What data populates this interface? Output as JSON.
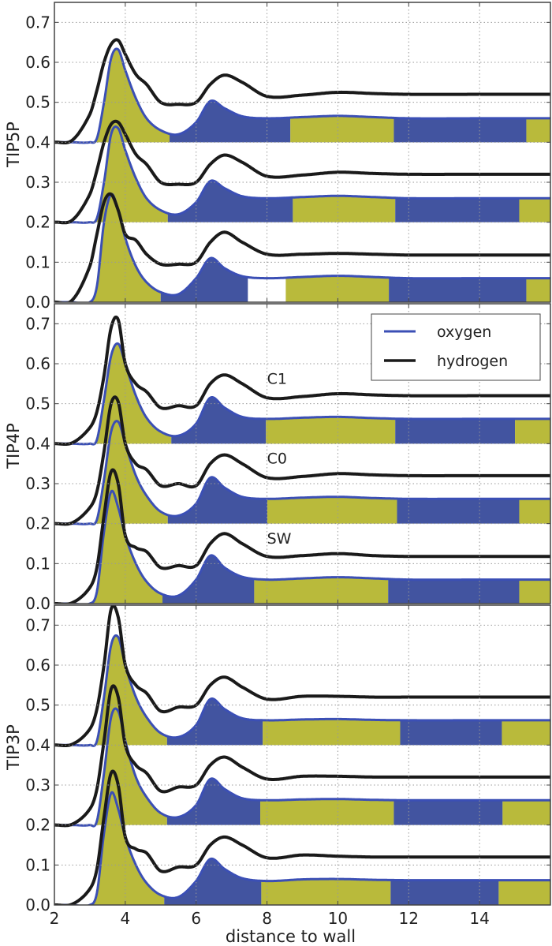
{
  "chart_data": [
    {
      "type": "area",
      "ylabel": "TIP5P",
      "xlabel": "",
      "xlim": [
        2,
        16
      ],
      "ylim": [
        0,
        0.75
      ],
      "grid": true,
      "x": [
        2,
        2.5,
        3.0,
        3.2,
        3.4,
        3.6,
        3.8,
        4.0,
        4.3,
        4.6,
        5.0,
        5.5,
        6.0,
        6.4,
        6.8,
        7.3,
        8,
        9,
        10,
        11,
        12,
        14,
        16
      ],
      "traces": [
        {
          "offset": 0.4,
          "oxygen": [
            0.4,
            0.4,
            0.4,
            0.41,
            0.5,
            0.61,
            0.632,
            0.58,
            0.51,
            0.46,
            0.43,
            0.42,
            0.45,
            0.503,
            0.485,
            0.465,
            0.46,
            0.463,
            0.466,
            0.463,
            0.46,
            0.46,
            0.46
          ],
          "hydrogen": [
            0.4,
            0.405,
            0.47,
            0.53,
            0.6,
            0.645,
            0.655,
            0.62,
            0.57,
            0.545,
            0.5,
            0.495,
            0.5,
            0.545,
            0.568,
            0.55,
            0.515,
            0.518,
            0.525,
            0.522,
            0.52,
            0.52,
            0.52
          ],
          "fill_segments": [
            {
              "from": 3.0,
              "to": 5.25,
              "color": "yellow"
            },
            {
              "from": 5.25,
              "to": 8.66,
              "color": "blue"
            },
            {
              "from": 8.66,
              "to": 11.58,
              "color": "yellow"
            },
            {
              "from": 11.58,
              "to": 15.32,
              "color": "blue"
            },
            {
              "from": 15.32,
              "to": 16,
              "color": "yellow"
            }
          ]
        },
        {
          "offset": 0.2,
          "oxygen": [
            0.2,
            0.2,
            0.2,
            0.21,
            0.3,
            0.42,
            0.435,
            0.38,
            0.31,
            0.26,
            0.23,
            0.22,
            0.25,
            0.303,
            0.285,
            0.265,
            0.26,
            0.263,
            0.266,
            0.263,
            0.26,
            0.26,
            0.26
          ],
          "hydrogen": [
            0.2,
            0.205,
            0.27,
            0.33,
            0.4,
            0.445,
            0.45,
            0.42,
            0.37,
            0.345,
            0.3,
            0.295,
            0.3,
            0.345,
            0.368,
            0.35,
            0.315,
            0.318,
            0.325,
            0.322,
            0.32,
            0.32,
            0.32
          ],
          "fill_segments": [
            {
              "from": 3.0,
              "to": 5.2,
              "color": "yellow"
            },
            {
              "from": 5.2,
              "to": 8.73,
              "color": "blue"
            },
            {
              "from": 8.73,
              "to": 11.62,
              "color": "yellow"
            },
            {
              "from": 11.62,
              "to": 15.12,
              "color": "blue"
            },
            {
              "from": 15.12,
              "to": 16,
              "color": "yellow"
            }
          ]
        },
        {
          "offset": 0.0,
          "oxygen": [
            0,
            0,
            0,
            0.04,
            0.2,
            0.27,
            0.23,
            0.16,
            0.09,
            0.05,
            0.025,
            0.02,
            0.06,
            0.11,
            0.085,
            0.065,
            0.06,
            0.063,
            0.066,
            0.063,
            0.06,
            0.06,
            0.06
          ],
          "hydrogen": [
            0,
            0.005,
            0.09,
            0.17,
            0.25,
            0.27,
            0.23,
            0.17,
            0.155,
            0.12,
            0.095,
            0.095,
            0.1,
            0.15,
            0.175,
            0.15,
            0.12,
            0.12,
            0.122,
            0.12,
            0.118,
            0.118,
            0.118
          ],
          "fill_segments": [
            {
              "from": 3.0,
              "to": 5.0,
              "color": "yellow"
            },
            {
              "from": 5.0,
              "to": 7.46,
              "color": "blue"
            },
            {
              "from": 8.53,
              "to": 11.44,
              "color": "yellow"
            },
            {
              "from": 11.44,
              "to": 15.32,
              "color": "blue"
            },
            {
              "from": 15.32,
              "to": 16,
              "color": "yellow"
            }
          ]
        }
      ],
      "annotations": []
    },
    {
      "type": "area",
      "ylabel": "TIP4P",
      "xlabel": "",
      "xlim": [
        2,
        16
      ],
      "ylim": [
        0,
        0.75
      ],
      "grid": true,
      "x": [
        2,
        2.5,
        3.0,
        3.2,
        3.4,
        3.6,
        3.8,
        4.0,
        4.3,
        4.6,
        5.0,
        5.5,
        6.0,
        6.4,
        6.8,
        7.3,
        8,
        9,
        10,
        11,
        12,
        14,
        16
      ],
      "traces": [
        {
          "offset": 0.4,
          "oxygen": [
            0.4,
            0.4,
            0.4,
            0.41,
            0.51,
            0.62,
            0.65,
            0.6,
            0.52,
            0.465,
            0.43,
            0.42,
            0.45,
            0.515,
            0.49,
            0.467,
            0.462,
            0.465,
            0.467,
            0.464,
            0.462,
            0.462,
            0.462
          ],
          "hydrogen": [
            0.4,
            0.402,
            0.44,
            0.48,
            0.57,
            0.69,
            0.71,
            0.6,
            0.55,
            0.53,
            0.49,
            0.495,
            0.495,
            0.55,
            0.572,
            0.55,
            0.515,
            0.518,
            0.525,
            0.522,
            0.52,
            0.52,
            0.52
          ],
          "fill_segments": [
            {
              "from": 3.0,
              "to": 5.3,
              "color": "yellow"
            },
            {
              "from": 5.3,
              "to": 7.97,
              "color": "blue"
            },
            {
              "from": 7.97,
              "to": 11.62,
              "color": "yellow"
            },
            {
              "from": 11.62,
              "to": 15.0,
              "color": "blue"
            },
            {
              "from": 15.0,
              "to": 16,
              "color": "yellow"
            }
          ]
        },
        {
          "offset": 0.2,
          "oxygen": [
            0.2,
            0.2,
            0.2,
            0.21,
            0.31,
            0.43,
            0.455,
            0.4,
            0.32,
            0.27,
            0.23,
            0.22,
            0.25,
            0.315,
            0.29,
            0.267,
            0.262,
            0.265,
            0.267,
            0.264,
            0.262,
            0.262,
            0.262
          ],
          "hydrogen": [
            0.2,
            0.202,
            0.24,
            0.28,
            0.38,
            0.5,
            0.505,
            0.4,
            0.35,
            0.335,
            0.295,
            0.3,
            0.295,
            0.35,
            0.372,
            0.35,
            0.315,
            0.318,
            0.325,
            0.322,
            0.32,
            0.32,
            0.32
          ],
          "fill_segments": [
            {
              "from": 3.0,
              "to": 5.2,
              "color": "yellow"
            },
            {
              "from": 5.2,
              "to": 8.01,
              "color": "blue"
            },
            {
              "from": 8.01,
              "to": 11.67,
              "color": "yellow"
            },
            {
              "from": 11.67,
              "to": 15.12,
              "color": "blue"
            },
            {
              "from": 15.12,
              "to": 16,
              "color": "yellow"
            }
          ]
        },
        {
          "offset": 0.0,
          "oxygen": [
            0,
            0,
            0,
            0.03,
            0.18,
            0.28,
            0.24,
            0.17,
            0.1,
            0.055,
            0.025,
            0.02,
            0.06,
            0.12,
            0.09,
            0.067,
            0.06,
            0.063,
            0.066,
            0.063,
            0.06,
            0.06,
            0.06
          ],
          "hydrogen": [
            0,
            0.002,
            0.04,
            0.09,
            0.22,
            0.33,
            0.3,
            0.17,
            0.14,
            0.13,
            0.09,
            0.095,
            0.095,
            0.15,
            0.175,
            0.15,
            0.118,
            0.12,
            0.125,
            0.12,
            0.118,
            0.118,
            0.118
          ],
          "fill_segments": [
            {
              "from": 3.0,
              "to": 5.05,
              "color": "yellow"
            },
            {
              "from": 5.05,
              "to": 7.64,
              "color": "blue"
            },
            {
              "from": 7.64,
              "to": 11.42,
              "color": "yellow"
            },
            {
              "from": 11.42,
              "to": 15.12,
              "color": "blue"
            },
            {
              "from": 15.12,
              "to": 16,
              "color": "yellow"
            }
          ]
        }
      ],
      "annotations": [
        {
          "text": "C1",
          "x": 8.0,
          "y": 0.55
        },
        {
          "text": "C0",
          "x": 8.0,
          "y": 0.35
        },
        {
          "text": "SW",
          "x": 8.0,
          "y": 0.15
        }
      ],
      "legend": {
        "position": "top-right",
        "entries": [
          {
            "name": "oxygen",
            "color": "#3b4fb5"
          },
          {
            "name": "hydrogen",
            "color": "#1a1a1a"
          }
        ]
      }
    },
    {
      "type": "area",
      "ylabel": "TIP3P",
      "xlabel": "distance to wall",
      "xlim": [
        2,
        16
      ],
      "ylim": [
        0,
        0.75
      ],
      "grid": true,
      "x": [
        2,
        2.5,
        3.0,
        3.2,
        3.4,
        3.6,
        3.8,
        4.0,
        4.3,
        4.6,
        5.0,
        5.5,
        6.0,
        6.4,
        6.8,
        7.3,
        8,
        9,
        10,
        11,
        12,
        14,
        16
      ],
      "traces": [
        {
          "offset": 0.4,
          "oxygen": [
            0.4,
            0.4,
            0.4,
            0.41,
            0.52,
            0.65,
            0.67,
            0.6,
            0.52,
            0.47,
            0.43,
            0.42,
            0.45,
            0.515,
            0.49,
            0.467,
            0.462,
            0.464,
            0.465,
            0.463,
            0.462,
            0.462,
            0.462
          ],
          "hydrogen": [
            0.4,
            0.402,
            0.44,
            0.49,
            0.6,
            0.74,
            0.72,
            0.6,
            0.55,
            0.53,
            0.485,
            0.495,
            0.5,
            0.55,
            0.57,
            0.545,
            0.515,
            0.522,
            0.522,
            0.52,
            0.52,
            0.52,
            0.52
          ],
          "fill_segments": [
            {
              "from": 3.0,
              "to": 5.18,
              "color": "yellow"
            },
            {
              "from": 5.18,
              "to": 7.88,
              "color": "blue"
            },
            {
              "from": 7.88,
              "to": 11.76,
              "color": "yellow"
            },
            {
              "from": 11.76,
              "to": 14.63,
              "color": "blue"
            },
            {
              "from": 14.63,
              "to": 16,
              "color": "yellow"
            }
          ]
        },
        {
          "offset": 0.2,
          "oxygen": [
            0.2,
            0.2,
            0.2,
            0.21,
            0.33,
            0.47,
            0.485,
            0.41,
            0.32,
            0.27,
            0.23,
            0.22,
            0.25,
            0.315,
            0.29,
            0.267,
            0.262,
            0.264,
            0.265,
            0.263,
            0.262,
            0.262,
            0.262
          ],
          "hydrogen": [
            0.2,
            0.202,
            0.24,
            0.29,
            0.41,
            0.54,
            0.52,
            0.4,
            0.35,
            0.33,
            0.285,
            0.295,
            0.3,
            0.35,
            0.37,
            0.345,
            0.315,
            0.322,
            0.322,
            0.32,
            0.32,
            0.32,
            0.32
          ],
          "fill_segments": [
            {
              "from": 3.0,
              "to": 5.18,
              "color": "yellow"
            },
            {
              "from": 5.18,
              "to": 7.81,
              "color": "blue"
            },
            {
              "from": 7.81,
              "to": 11.58,
              "color": "yellow"
            },
            {
              "from": 11.58,
              "to": 14.65,
              "color": "blue"
            },
            {
              "from": 14.65,
              "to": 16,
              "color": "yellow"
            }
          ]
        },
        {
          "offset": 0.0,
          "oxygen": [
            0,
            0,
            0,
            0.03,
            0.18,
            0.28,
            0.24,
            0.17,
            0.1,
            0.055,
            0.025,
            0.02,
            0.06,
            0.115,
            0.09,
            0.067,
            0.06,
            0.064,
            0.065,
            0.063,
            0.062,
            0.062,
            0.062
          ],
          "hydrogen": [
            0,
            0.002,
            0.04,
            0.09,
            0.22,
            0.33,
            0.3,
            0.17,
            0.14,
            0.13,
            0.085,
            0.095,
            0.1,
            0.15,
            0.17,
            0.15,
            0.118,
            0.125,
            0.122,
            0.12,
            0.12,
            0.12,
            0.12
          ],
          "fill_segments": [
            {
              "from": 3.0,
              "to": 5.1,
              "color": "yellow"
            },
            {
              "from": 5.1,
              "to": 7.84,
              "color": "blue"
            },
            {
              "from": 7.84,
              "to": 11.49,
              "color": "yellow"
            },
            {
              "from": 11.49,
              "to": 14.54,
              "color": "blue"
            },
            {
              "from": 14.54,
              "to": 16,
              "color": "yellow"
            }
          ]
        }
      ],
      "annotations": []
    }
  ],
  "axes": {
    "yticks": [
      "0.0",
      "0.1",
      "0.2",
      "0.3",
      "0.4",
      "0.5",
      "0.6",
      "0.7"
    ],
    "xticks": [
      "2",
      "4",
      "6",
      "8",
      "10",
      "12",
      "14"
    ]
  },
  "colors": {
    "yellow": "#b9ba3b",
    "blue": "#4254a0",
    "oxygen_line": "#3b4fb5",
    "hydrogen_line": "#1a1a1a",
    "grid": "#999999"
  }
}
